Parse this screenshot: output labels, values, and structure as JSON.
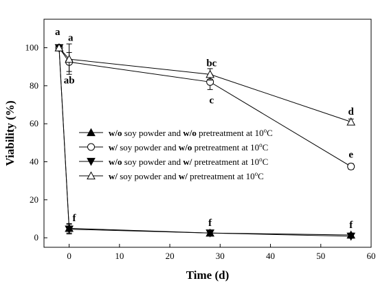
{
  "chart_data": {
    "type": "line",
    "title": "",
    "xlabel": "Time (d)",
    "ylabel": "Viability (%)",
    "xlim": [
      -5,
      60
    ],
    "ylim": [
      -5,
      115
    ],
    "xticks": [
      0,
      10,
      20,
      30,
      40,
      50,
      60
    ],
    "yticks": [
      0,
      20,
      40,
      60,
      80,
      100
    ],
    "legend_position": "left-center",
    "series": [
      {
        "legend": [
          {
            "text": "w/o",
            "bold": true
          },
          {
            "text": " soy powder and ",
            "bold": false
          },
          {
            "text": "w/o",
            "bold": true
          },
          {
            "text": " pretreatment at 10",
            "bold": false
          },
          {
            "text": "o",
            "sup": true
          },
          {
            "text": "C",
            "bold": false
          }
        ],
        "marker": "triangle-up",
        "fill": "#000000",
        "x": [
          -2,
          0,
          28,
          56
        ],
        "y": [
          100,
          5,
          2.5,
          1.5
        ],
        "err": [
          0,
          2.5,
          1,
          1
        ]
      },
      {
        "legend": [
          {
            "text": "w/",
            "bold": true
          },
          {
            "text": " soy powder and ",
            "bold": false
          },
          {
            "text": "w/o",
            "bold": true
          },
          {
            "text": " pretreatment at 10",
            "bold": false
          },
          {
            "text": "o",
            "sup": true
          },
          {
            "text": "C",
            "bold": false
          }
        ],
        "marker": "circle",
        "fill": "#ffffff",
        "x": [
          -2,
          0,
          28,
          56
        ],
        "y": [
          100,
          92.5,
          82,
          37.5
        ],
        "err": [
          0,
          5,
          4,
          1.5
        ]
      },
      {
        "legend": [
          {
            "text": "w/o",
            "bold": true
          },
          {
            "text": " soy powder and ",
            "bold": false
          },
          {
            "text": "w/",
            "bold": true
          },
          {
            "text": " pretreatment at 10",
            "bold": false
          },
          {
            "text": "o",
            "sup": true
          },
          {
            "text": "C",
            "bold": false
          }
        ],
        "marker": "triangle-down",
        "fill": "#000000",
        "x": [
          -2,
          0,
          28,
          56
        ],
        "y": [
          100,
          4.5,
          2.5,
          0.8
        ],
        "err": [
          0,
          2.5,
          1,
          1
        ]
      },
      {
        "legend": [
          {
            "text": "w/",
            "bold": true
          },
          {
            "text": " soy powder and ",
            "bold": false
          },
          {
            "text": "w/",
            "bold": true
          },
          {
            "text": " pretreatment at 10",
            "bold": false
          },
          {
            "text": "o",
            "sup": true
          },
          {
            "text": "C",
            "bold": false
          }
        ],
        "marker": "triangle-up",
        "fill": "#ffffff",
        "x": [
          -2,
          0,
          28,
          56
        ],
        "y": [
          100,
          94,
          86,
          61
        ],
        "err": [
          0,
          8,
          3,
          1.5
        ]
      }
    ],
    "annotations": [
      {
        "text": "a",
        "x": -2.3,
        "y": 108.5
      },
      {
        "text": "a",
        "x": 0.3,
        "y": 105.5
      },
      {
        "text": "ab",
        "x": 0,
        "y": 83
      },
      {
        "text": "bc",
        "x": 28.3,
        "y": 92
      },
      {
        "text": "c",
        "x": 28.3,
        "y": 72.5
      },
      {
        "text": "d",
        "x": 56,
        "y": 66.5
      },
      {
        "text": "e",
        "x": 56,
        "y": 44
      },
      {
        "text": "f",
        "x": 1,
        "y": 10.5
      },
      {
        "text": "f",
        "x": 28,
        "y": 8
      },
      {
        "text": "f",
        "x": 56,
        "y": 7
      }
    ]
  }
}
